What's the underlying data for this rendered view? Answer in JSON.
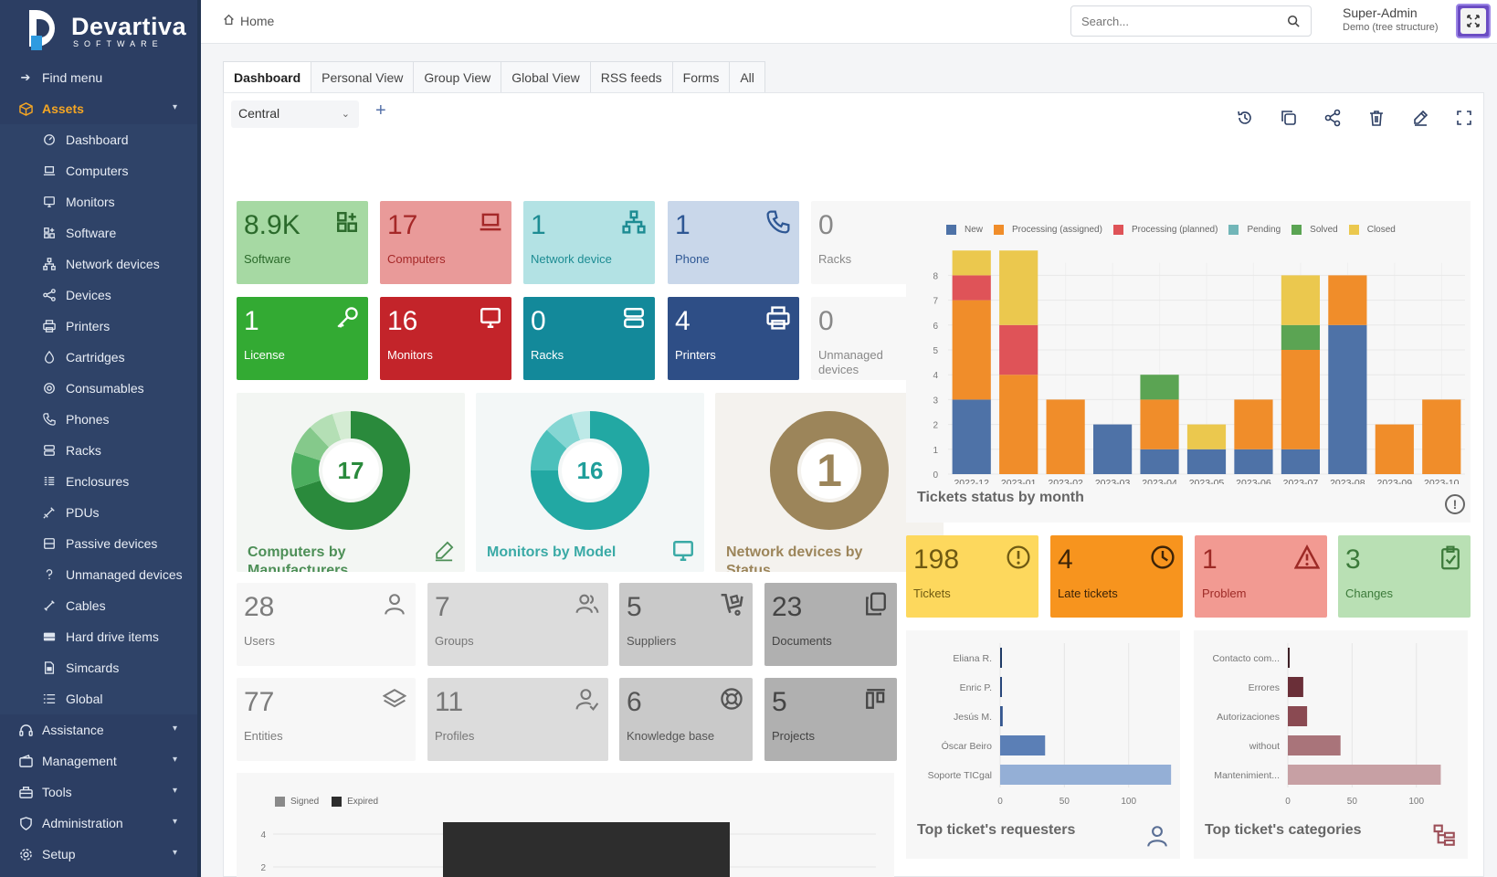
{
  "brand": {
    "name": "Devartiva",
    "tagline": "SOFTWARE"
  },
  "sidebar": {
    "find_menu": "Find menu",
    "assets": {
      "label": "Assets",
      "items": [
        {
          "label": "Dashboard",
          "icon": "dashboard-icon"
        },
        {
          "label": "Computers",
          "icon": "laptop-icon"
        },
        {
          "label": "Monitors",
          "icon": "monitor-icon"
        },
        {
          "label": "Software",
          "icon": "software-icon"
        },
        {
          "label": "Network devices",
          "icon": "network-icon"
        },
        {
          "label": "Devices",
          "icon": "devices-icon"
        },
        {
          "label": "Printers",
          "icon": "printer-icon"
        },
        {
          "label": "Cartridges",
          "icon": "cartridge-icon"
        },
        {
          "label": "Consumables",
          "icon": "consumable-icon"
        },
        {
          "label": "Phones",
          "icon": "phone-icon"
        },
        {
          "label": "Racks",
          "icon": "rack-icon"
        },
        {
          "label": "Enclosures",
          "icon": "enclosure-icon"
        },
        {
          "label": "PDUs",
          "icon": "pdu-icon"
        },
        {
          "label": "Passive devices",
          "icon": "passive-device-icon"
        },
        {
          "label": "Unmanaged devices",
          "icon": "question-icon"
        },
        {
          "label": "Cables",
          "icon": "cable-icon"
        },
        {
          "label": "Hard drive items",
          "icon": "hard-drive-icon"
        },
        {
          "label": "Simcards",
          "icon": "simcard-icon"
        },
        {
          "label": "Global",
          "icon": "list-icon"
        }
      ]
    },
    "sections": [
      "Assistance",
      "Management",
      "Tools",
      "Administration",
      "Setup"
    ]
  },
  "header": {
    "breadcrumb": "Home",
    "search_placeholder": "Search...",
    "user_name": "Super-Admin",
    "entity": "Demo (tree structure)"
  },
  "tabs": [
    "Dashboard",
    "Personal View",
    "Group View",
    "Global View",
    "RSS feeds",
    "Forms",
    "All"
  ],
  "dashboard_select": "Central",
  "tiles_row1": [
    {
      "num": "8.9K",
      "label": "Software",
      "bg": "#a6d9a3",
      "fg": "#2b6a2b"
    },
    {
      "num": "17",
      "label": "Computers",
      "bg": "#e99a99",
      "fg": "#a52828"
    },
    {
      "num": "1",
      "label": "Network device",
      "bg": "#b3e2e4",
      "fg": "#1d8c93"
    },
    {
      "num": "1",
      "label": "Phone",
      "bg": "#c9d7ea",
      "fg": "#2e5794"
    },
    {
      "num": "0",
      "label": "Racks",
      "bg": "#f7f7f7",
      "fg": "#888888"
    }
  ],
  "tiles_row2": [
    {
      "num": "1",
      "label": "License",
      "bg": "#33aa33",
      "fg": "#ffffff"
    },
    {
      "num": "16",
      "label": "Monitors",
      "bg": "#c3242a",
      "fg": "#ffffff"
    },
    {
      "num": "0",
      "label": "Racks",
      "bg": "#13899a",
      "fg": "#ffffff"
    },
    {
      "num": "4",
      "label": "Printers",
      "bg": "#2e4e86",
      "fg": "#ffffff"
    },
    {
      "num": "0",
      "label": "Unmanaged devices",
      "bg": "#f7f7f7",
      "fg": "#888888"
    }
  ],
  "donuts": [
    {
      "value": "17",
      "title": "Computers by Manufacturers"
    },
    {
      "value": "16",
      "title": "Monitors by Model"
    },
    {
      "value": "1",
      "title": "Network devices by Status"
    }
  ],
  "tiles_row3": [
    {
      "num": "28",
      "label": "Users"
    },
    {
      "num": "7",
      "label": "Groups"
    },
    {
      "num": "5",
      "label": "Suppliers"
    },
    {
      "num": "23",
      "label": "Documents"
    }
  ],
  "tiles_row4": [
    {
      "num": "77",
      "label": "Entities"
    },
    {
      "num": "11",
      "label": "Profiles"
    },
    {
      "num": "6",
      "label": "Knowledge base"
    },
    {
      "num": "5",
      "label": "Projects"
    }
  ],
  "ticket_tiles": [
    {
      "num": "198",
      "label": "Tickets"
    },
    {
      "num": "4",
      "label": "Late tickets"
    },
    {
      "num": "1",
      "label": "Problem"
    },
    {
      "num": "3",
      "label": "Changes"
    }
  ],
  "chart_data": [
    {
      "type": "bar",
      "stacked": true,
      "title": "Tickets status by month",
      "categories": [
        "2022-12",
        "2023-01",
        "2023-02",
        "2023-03",
        "2023-04",
        "2023-05",
        "2023-06",
        "2023-07",
        "2023-08",
        "2023-09",
        "2023-10"
      ],
      "series": [
        {
          "name": "New",
          "color": "#4e72a7",
          "values": [
            3,
            0,
            0,
            2,
            1,
            1,
            1,
            1,
            6,
            0,
            0
          ]
        },
        {
          "name": "Processing (assigned)",
          "color": "#f08d2a",
          "values": [
            4,
            4,
            3,
            0,
            2,
            0,
            2,
            4,
            2,
            2,
            3
          ]
        },
        {
          "name": "Processing (planned)",
          "color": "#df5358",
          "values": [
            1,
            2,
            0,
            0,
            0,
            0,
            0,
            0,
            0,
            0,
            0
          ]
        },
        {
          "name": "Pending",
          "color": "#72b6b8",
          "values": [
            0,
            0,
            0,
            0,
            0,
            0,
            0,
            0,
            0,
            0,
            0
          ]
        },
        {
          "name": "Solved",
          "color": "#5ba453",
          "values": [
            0,
            0,
            0,
            0,
            1,
            0,
            0,
            1,
            0,
            0,
            0
          ]
        },
        {
          "name": "Closed",
          "color": "#ebc84e",
          "values": [
            1,
            3,
            0,
            0,
            0,
            1,
            0,
            2,
            0,
            0,
            0
          ]
        }
      ],
      "ylim": [
        0,
        9
      ],
      "yticks": [
        0,
        1,
        2,
        3,
        4,
        5,
        6,
        7,
        8
      ]
    },
    {
      "type": "bar",
      "orientation": "horizontal",
      "title": "Top ticket's requesters",
      "categories": [
        "Eliana R.",
        "Enric P.",
        "Jesús M.",
        "Óscar Beiro",
        "Soporte TICgal"
      ],
      "values": [
        1,
        1,
        2,
        35,
        133
      ],
      "color": "#4e72a7",
      "xlim": [
        0,
        140
      ],
      "xticks": [
        0,
        50,
        100
      ]
    },
    {
      "type": "bar",
      "orientation": "horizontal",
      "title": "Top ticket's categories",
      "categories": [
        "Contacto com...",
        "Errores",
        "Autorizaciones",
        "without",
        "Mantenimient..."
      ],
      "values": [
        1,
        12,
        15,
        41,
        119
      ],
      "color": "#9c4f58",
      "xlim": [
        0,
        140
      ],
      "xticks": [
        0,
        50,
        100
      ]
    },
    {
      "type": "bar",
      "legend": [
        "Signed",
        "Expired"
      ],
      "series": [
        {
          "name": "Signed",
          "color": "#8a8a8a",
          "values": []
        },
        {
          "name": "Expired",
          "color": "#2d2d2d",
          "values": [
            5
          ]
        }
      ],
      "yticks": [
        2,
        4
      ]
    }
  ]
}
